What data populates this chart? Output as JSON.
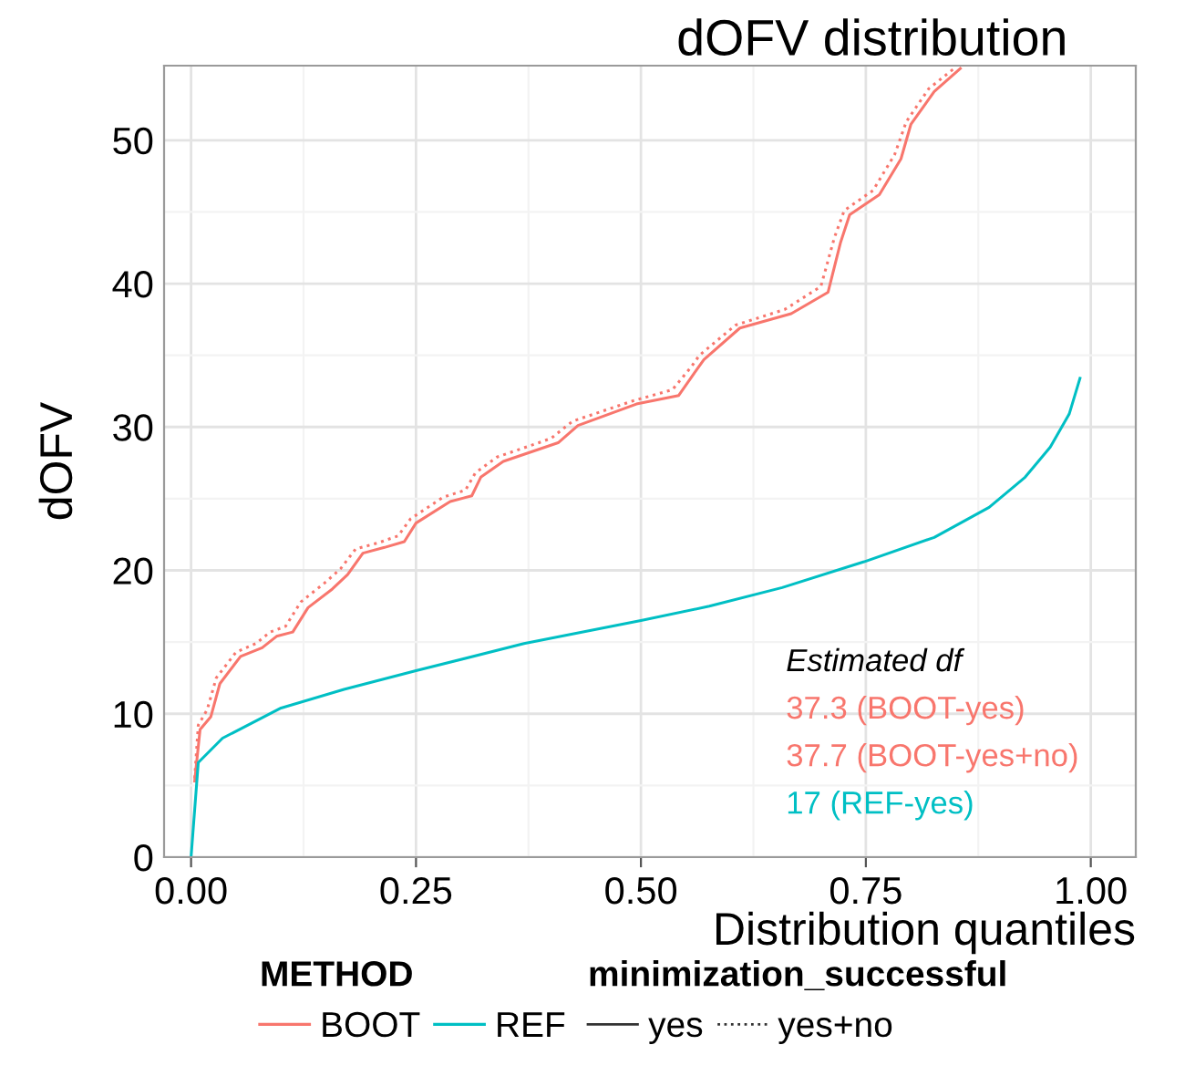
{
  "chart_data": {
    "type": "line",
    "title": "dOFV distribution",
    "xlabel": "Distribution quantiles",
    "ylabel": "dOFV",
    "xlim": [
      -0.03,
      1.05
    ],
    "ylim": [
      0,
      55.2
    ],
    "xticks": [
      {
        "value": 0,
        "label": "0.00"
      },
      {
        "value": 0.25,
        "label": "0.25"
      },
      {
        "value": 0.5,
        "label": "0.50"
      },
      {
        "value": 0.75,
        "label": "0.75"
      },
      {
        "value": 1,
        "label": "1.00"
      }
    ],
    "yticks": [
      0,
      10,
      20,
      30,
      40,
      50
    ],
    "grid": true,
    "legend": "bottom",
    "legend_title": [
      "METHOD",
      "minimization_successful"
    ],
    "annotations": [
      "Estimated df",
      "37.3 (BOOT-yes)",
      "37.7 (BOOT-yes+no)",
      "17 (REF-yes)",
      "yes",
      "yes+no"
    ],
    "series": [
      {
        "name": "BOOT",
        "color": "#f8766d",
        "line_style": "solid",
        "x": [
          0.004,
          0.01,
          0.022,
          0.032,
          0.055,
          0.079,
          0.095,
          0.113,
          0.13,
          0.157,
          0.174,
          0.191,
          0.215,
          0.237,
          0.25,
          0.288,
          0.312,
          0.322,
          0.347,
          0.408,
          0.43,
          0.495,
          0.542,
          0.562,
          0.57,
          0.61,
          0.667,
          0.708,
          0.722,
          0.732,
          0.765,
          0.789,
          0.8,
          0.826,
          0.855
        ],
        "values": [
          5.3,
          8.9,
          9.8,
          12.1,
          14.0,
          14.6,
          15.4,
          15.7,
          17.4,
          18.7,
          19.7,
          21.2,
          21.6,
          22.0,
          23.3,
          24.8,
          25.2,
          26.5,
          27.6,
          28.9,
          30.1,
          31.6,
          32.2,
          34.0,
          34.7,
          36.9,
          37.9,
          39.4,
          42.9,
          44.8,
          46.2,
          48.7,
          51.1,
          53.4,
          55.0
        ]
      },
      {
        "color": "#f8766d",
        "line_style": "dotted",
        "x": [
          0.004,
          0.008,
          0.018,
          0.028,
          0.05,
          0.072,
          0.088,
          0.105,
          0.122,
          0.148,
          0.166,
          0.183,
          0.207,
          0.23,
          0.244,
          0.28,
          0.305,
          0.316,
          0.34,
          0.4,
          0.424,
          0.49,
          0.535,
          0.556,
          0.565,
          0.605,
          0.66,
          0.7,
          0.715,
          0.726,
          0.758,
          0.782,
          0.795,
          0.82,
          0.848
        ],
        "values": [
          5.5,
          9.2,
          10.3,
          12.5,
          14.3,
          14.9,
          15.7,
          16.1,
          17.8,
          19.1,
          20.1,
          21.5,
          21.9,
          22.4,
          23.6,
          25.1,
          25.6,
          26.8,
          27.9,
          29.2,
          30.4,
          31.8,
          32.6,
          34.2,
          35.0,
          37.1,
          38.2,
          39.8,
          43.2,
          45.1,
          46.5,
          49.0,
          51.3,
          53.6,
          55.0
        ]
      },
      {
        "name": "REF",
        "color": "#00bfc4",
        "line_style": "solid",
        "x": [
          0,
          0.008,
          0.035,
          0.1,
          0.17,
          0.25,
          0.37,
          0.5,
          0.576,
          0.657,
          0.748,
          0.826,
          0.887,
          0.927,
          0.955,
          0.976,
          0.988
        ],
        "values": [
          0,
          6.6,
          8.3,
          10.4,
          11.7,
          13.0,
          14.9,
          16.5,
          17.5,
          18.8,
          20.6,
          22.3,
          24.4,
          26.5,
          28.6,
          30.9,
          33.4
        ]
      }
    ]
  }
}
